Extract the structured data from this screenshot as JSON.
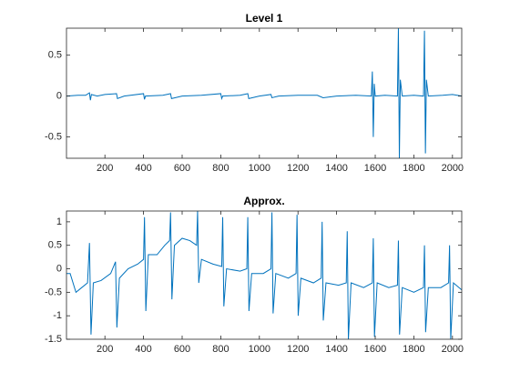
{
  "chart_data": [
    {
      "type": "line",
      "title": "Level 1",
      "x": [
        1,
        60,
        100,
        120,
        125,
        130,
        160,
        200,
        260,
        265,
        300,
        400,
        405,
        410,
        500,
        540,
        545,
        600,
        700,
        800,
        805,
        810,
        900,
        940,
        945,
        1000,
        1060,
        1065,
        1100,
        1200,
        1300,
        1330,
        1400,
        1500,
        1580,
        1585,
        1590,
        1595,
        1600,
        1650,
        1715,
        1720,
        1725,
        1730,
        1740,
        1800,
        1850,
        1855,
        1860,
        1865,
        1875,
        1950,
        2000,
        2048
      ],
      "series": [
        {
          "color": "#0072bd",
          "values": [
            0,
            0.01,
            0.01,
            0.04,
            -0.05,
            0.02,
            0,
            0.02,
            0.03,
            -0.03,
            0,
            0.03,
            -0.04,
            0,
            0.01,
            0.03,
            -0.03,
            0,
            0.01,
            0.03,
            -0.03,
            0,
            0.01,
            0.03,
            -0.03,
            0,
            0.02,
            -0.02,
            0,
            0.01,
            0.01,
            -0.02,
            0,
            0.01,
            0,
            0.3,
            -0.5,
            0.15,
            0,
            0.01,
            0,
            0.83,
            -0.76,
            0.2,
            0,
            0.01,
            0,
            0.8,
            -0.7,
            0.2,
            0,
            0.01,
            0.02,
            0
          ]
        }
      ],
      "xlim": [
        1,
        2048
      ],
      "xticks": [
        200,
        400,
        600,
        800,
        1000,
        1200,
        1400,
        1600,
        1800,
        2000
      ],
      "ylim": [
        -0.76,
        0.83
      ],
      "yticks": [
        -0.5,
        0,
        0.5
      ]
    },
    {
      "type": "line",
      "title": "Approx.",
      "x": [
        1,
        20,
        50,
        80,
        110,
        120,
        128,
        140,
        180,
        230,
        255,
        262,
        275,
        320,
        370,
        400,
        405,
        412,
        425,
        470,
        510,
        535,
        540,
        547,
        560,
        600,
        640,
        675,
        680,
        686,
        700,
        760,
        805,
        810,
        816,
        830,
        900,
        935,
        940,
        946,
        960,
        1020,
        1060,
        1065,
        1071,
        1085,
        1150,
        1190,
        1195,
        1201,
        1215,
        1280,
        1320,
        1325,
        1331,
        1345,
        1410,
        1450,
        1455,
        1461,
        1475,
        1540,
        1585,
        1590,
        1596,
        1610,
        1670,
        1715,
        1720,
        1726,
        1740,
        1800,
        1850,
        1855,
        1861,
        1875,
        1940,
        1980,
        1985,
        1991,
        2005,
        2048
      ],
      "series": [
        {
          "color": "#0072bd",
          "values": [
            -0.1,
            -0.1,
            -0.5,
            -0.4,
            -0.3,
            0.55,
            -1.4,
            -0.3,
            -0.25,
            -0.1,
            0.15,
            -1.25,
            -0.2,
            0,
            0.1,
            0.2,
            1.1,
            -0.9,
            0.3,
            0.3,
            0.5,
            0.6,
            1.2,
            -0.65,
            0.5,
            0.65,
            0.6,
            0.5,
            1.23,
            -0.3,
            0.2,
            0.1,
            0.05,
            1.1,
            -0.8,
            0,
            -0.05,
            0,
            1.1,
            -0.9,
            -0.1,
            -0.1,
            0,
            1.2,
            -0.95,
            -0.1,
            -0.2,
            -0.1,
            1.15,
            -1.0,
            -0.2,
            -0.3,
            -0.2,
            1.0,
            -1.1,
            -0.3,
            -0.35,
            -0.3,
            0.8,
            -1.5,
            -0.3,
            -0.4,
            -0.3,
            0.65,
            -1.45,
            -0.3,
            -0.4,
            -0.35,
            0.6,
            -1.4,
            -0.4,
            -0.5,
            -0.4,
            0.5,
            -1.35,
            -0.4,
            -0.4,
            -0.3,
            0.5,
            -1.5,
            -0.3,
            -0.45
          ]
        }
      ],
      "xlim": [
        1,
        2048
      ],
      "xticks": [
        200,
        400,
        600,
        800,
        1000,
        1200,
        1400,
        1600,
        1800,
        2000
      ],
      "ylim": [
        -1.5,
        1.23
      ],
      "yticks": [
        -1.5,
        -1,
        -0.5,
        0,
        0.5,
        1
      ]
    }
  ]
}
